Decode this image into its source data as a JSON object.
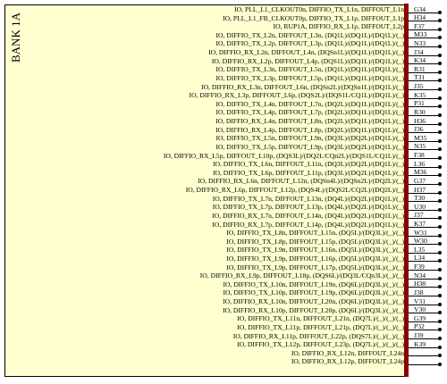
{
  "bank": {
    "title": "BANK 1A"
  },
  "pins": [
    {
      "fn": "IO, PLL_L1_CLKOUT0n, DIFFIO_TX_L1n, DIFFOUT_L1n",
      "pin": "G34"
    },
    {
      "fn": "IO, PLL_L1_FB_CLKOUT0p, DIFFIO_TX_L1p, DIFFOUT_L1p",
      "pin": "H34"
    },
    {
      "fn": "IO, RUP1A, DIFFIO_RX_L1p, DIFFOUT_L2p",
      "pin": "F37"
    },
    {
      "fn": "IO, DIFFIO_TX_L2n, DIFFOUT_L3n, (DQ1L)/(DQ1L)/(DQ1L)/(_)",
      "pin": "M33"
    },
    {
      "fn": "IO, DIFFIO_TX_L2p, DIFFOUT_L3p, (DQ1L)/(DQ1L)/(DQ1L)/(_)",
      "pin": "N33"
    },
    {
      "fn": "IO, DIFFIO_RX_L2n, DIFFOUT_L4n, (DQSn1L)/(DQ1L)/(DQ1L)/(_)",
      "pin": "J34"
    },
    {
      "fn": "IO, DIFFIO_RX_L2p, DIFFOUT_L4p, (DQS1L)/(DQ1L)/(DQ1L)/(_)",
      "pin": "K34"
    },
    {
      "fn": "IO, DIFFIO_TX_L3n, DIFFOUT_L5n, (DQ1L)/(DQ1L)/(DQ1L)/(_)",
      "pin": "R31"
    },
    {
      "fn": "IO, DIFFIO_TX_L3p, DIFFOUT_L5p, (DQ1L)/(DQ1L)/(DQ1L)/(_)",
      "pin": "T31"
    },
    {
      "fn": "IO, DIFFIO_RX_L3n, DIFFOUT_L6n, (DQSn2L)/(DQSn1L)/(DQ1L)/(_)",
      "pin": "J35"
    },
    {
      "fn": "IO, DIFFIO_RX_L3p, DIFFOUT_L6p, (DQS2L)/(DQS1L/CQ1L)/(DQ1L)/(_)",
      "pin": "K35"
    },
    {
      "fn": "IO, DIFFIO_TX_L4n, DIFFOUT_L7n, (DQ2L)/(DQ1L)/(DQ1L)/(_)",
      "pin": "P31"
    },
    {
      "fn": "IO, DIFFIO_TX_L4p, DIFFOUT_L7p, (DQ2L)/(DQ1L)/(DQ1L)/(_)",
      "pin": "R30"
    },
    {
      "fn": "IO, DIFFIO_RX_L4n, DIFFOUT_L8n, (DQ2L)/(DQ1L)/(DQ1L)/(_)",
      "pin": "H36"
    },
    {
      "fn": "IO, DIFFIO_RX_L4p, DIFFOUT_L8p, (DQ2L)/(DQ1L)/(DQ1L)/(_)",
      "pin": "J36"
    },
    {
      "fn": "IO, DIFFIO_TX_L5n, DIFFOUT_L9n, (DQ3L)/(DQ2L)/(DQ1L)/(_)",
      "pin": "M35"
    },
    {
      "fn": "IO, DIFFIO_TX_L5p, DIFFOUT_L9p, (DQ3L)/(DQ2L)/(DQ1L)/(_)",
      "pin": "N35"
    },
    {
      "fn": "IO, DIFFIO_RX_L5p, DIFFOUT_L10p, (DQS3L)/(DQ2L/CQn2L)/(DQS1L/CQ1L)/(_)",
      "pin": "F38"
    },
    {
      "fn": "IO, DIFFIO_TX_L6n, DIFFOUT_L11n, (DQ3L)/(DQ2L)/(DQ1L)/(_)",
      "pin": "L36"
    },
    {
      "fn": "IO, DIFFIO_TX_L6p, DIFFOUT_L11p, (DQ3L)/(DQ2L)/(DQ1L)/(_)",
      "pin": "M36"
    },
    {
      "fn": "IO, DIFFIO_RX_L6n, DIFFOUT_L12n, (DQSn4L)/(DQSn2L)/(DQ2L)/(_)",
      "pin": "G37"
    },
    {
      "fn": "IO, DIFFIO_RX_L6p, DIFFOUT_L12p, (DQS4L)/(DQS2L/CQ2L)/(DQ2L)/(_)",
      "pin": "H37"
    },
    {
      "fn": "IO, DIFFIO_TX_L7n, DIFFOUT_L13n, (DQ4L)/(DQ2L)/(DQ1L)/(_)",
      "pin": "T30"
    },
    {
      "fn": "IO, DIFFIO_TX_L7p, DIFFOUT_L13p, (DQ4L)/(DQ2L)/(DQ1L)/(_)",
      "pin": "U30"
    },
    {
      "fn": "IO, DIFFIO_RX_L7n, DIFFOUT_L14n, (DQ4L)/(DQ2L)/(DQ1L)/(_)",
      "pin": "J37"
    },
    {
      "fn": "IO, DIFFIO_RX_L7p, DIFFOUT_L14p, (DQ4L)/(DQ2L)/(DQ1L)/(_)",
      "pin": "K37"
    },
    {
      "fn": "IO, DIFFIO_TX_L8n, DIFFOUT_L15n, (DQ5L)/(DQ3L)/(_)/(_)",
      "pin": "W31"
    },
    {
      "fn": "IO, DIFFIO_TX_L8p, DIFFOUT_L15p, (DQ5L)/(DQ3L)/(_)/(_)",
      "pin": "W30"
    },
    {
      "fn": "IO, DIFFIO_TX_L9n, DIFFOUT_L16n, (DQ5L)/(DQ3L)/(_)/(_)",
      "pin": "L35"
    },
    {
      "fn": "IO, DIFFIO_TX_L9p, DIFFOUT_L16p, (DQ5L)/(DQ3L)/(_)/(_)",
      "pin": "L34"
    },
    {
      "fn": "IO, DIFFIO_TX_L9p, DIFFOUT_L17p, (DQ5L)/(DQ3L)/(_)/(_)",
      "pin": "F39"
    },
    {
      "fn": "IO, DIFFIO_RX_L9p, DIFFOUT_L18p, (DQS6L)/(DQ3L/CQn3L)/(_)/(_)",
      "pin": "N34"
    },
    {
      "fn": "IO, DIFFIO_TX_L10n, DIFFOUT_L19n, (DQ6L)/(DQ3L)/(_)/(_)",
      "pin": "H38"
    },
    {
      "fn": "IO, DIFFIO_TX_L10p, DIFFOUT_L19p, (DQ6L)/(DQ3L)/(_)/(_)",
      "pin": "J38"
    },
    {
      "fn": "IO, DIFFIO_RX_L10n, DIFFOUT_L20n, (DQ6L)/(DQ3L)/(_)/(_)",
      "pin": "V31"
    },
    {
      "fn": "IO, DIFFIO_RX_L10p, DIFFOUT_L20p, (DQ6L)/(DQ3L)/(_)/(_)",
      "pin": "V30"
    },
    {
      "fn": "IO, DIFFIO_TX_L11n, DIFFOUT_L21n, (DQ7L)/(_)/(_)/(_)",
      "pin": "G39"
    },
    {
      "fn": "IO, DIFFIO_TX_L11p, DIFFOUT_L21p, (DQ7L)/(_)/(_)/(_)",
      "pin": "P32"
    },
    {
      "fn": "IO, DIFFIO_RX_L11p, DIFFOUT_L22p, (DQS7L)/(_)/(_)/(_)",
      "pin": "J39"
    },
    {
      "fn": "IO, DIFFIO_TX_L12p, DIFFOUT_L23p, (DQ7L)/(_)/(_)/(_)",
      "pin": "K39"
    },
    {
      "fn": "IO, DIFFIO_RX_L12n, DIFFOUT_L24n",
      "pin": ""
    },
    {
      "fn": "IO, DIFFIO_RX_L12p, DIFFOUT_L24p",
      "pin": ""
    }
  ],
  "colors": {
    "block_fill": "#ffffd0",
    "bar": "#8b0000",
    "lines": "#000000"
  }
}
